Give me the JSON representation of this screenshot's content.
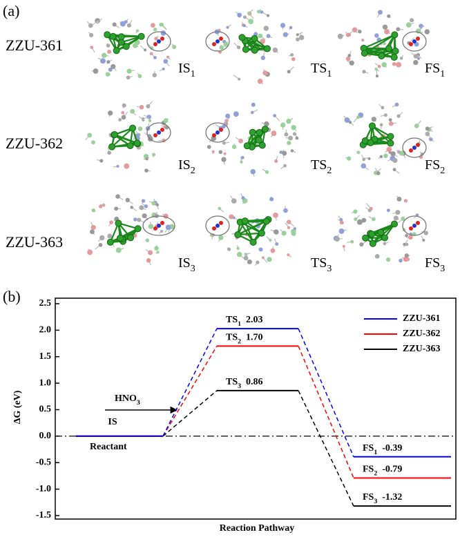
{
  "panel_a": {
    "label": "(a)",
    "rows": [
      {
        "name": "ZZU-361",
        "states": [
          {
            "main": "IS",
            "sub": "1"
          },
          {
            "main": "TS",
            "sub": "1"
          },
          {
            "main": "FS",
            "sub": "1"
          }
        ]
      },
      {
        "name": "ZZU-362",
        "states": [
          {
            "main": "IS",
            "sub": "2"
          },
          {
            "main": "TS",
            "sub": "2"
          },
          {
            "main": "FS",
            "sub": "2"
          }
        ]
      },
      {
        "name": "ZZU-363",
        "states": [
          {
            "main": "IS",
            "sub": "3"
          },
          {
            "main": "TS",
            "sub": "3"
          },
          {
            "main": "FS",
            "sub": "3"
          }
        ]
      }
    ]
  },
  "chart_data": {
    "type": "energy-profile",
    "label": "(b)",
    "ylabel": "ΔG (eV)",
    "xlabel": "Reaction Pathway",
    "categories": [
      "IS",
      null,
      null
    ],
    "ylim": [
      -1.5,
      2.5
    ],
    "yticks": [
      -1.5,
      {
        "value": -1,
        "label": "-1.0"
      },
      -0.5,
      {
        "value": 0,
        "label": "0.0"
      },
      0.5,
      {
        "value": 1,
        "label": "1.0"
      },
      1.5,
      {
        "value": 2,
        "label": "2.0"
      },
      2.5
    ],
    "annotations": [
      {
        "text": "Reactant"
      },
      {
        "main": "HNO",
        "sub": "3"
      }
    ],
    "series": [
      {
        "name": "ZZU-361",
        "color": "#0000ff",
        "values": [
          0,
          2.03,
          -0.39
        ],
        "value_labels": [
          null,
          "2.03",
          "-0.39"
        ],
        "state_labels": [
          null,
          {
            "main": "TS",
            "sub": "1"
          },
          {
            "main": "FS",
            "sub": "1"
          }
        ]
      },
      {
        "name": "ZZU-362",
        "color": "#ff0000",
        "values": [
          0,
          1.7,
          -0.79
        ],
        "value_labels": [
          null,
          "1.70",
          "-0.79"
        ],
        "state_labels": [
          null,
          {
            "main": "TS",
            "sub": "2"
          },
          {
            "main": "FS",
            "sub": "2"
          }
        ]
      },
      {
        "name": "ZZU-363",
        "color": "#000000",
        "values": [
          0,
          0.86,
          -1.32
        ],
        "value_labels": [
          null,
          "0.86",
          "-1.32"
        ],
        "state_labels": [
          null,
          {
            "main": "TS",
            "sub": "3"
          },
          {
            "main": "FS",
            "sub": "3"
          }
        ]
      }
    ]
  }
}
